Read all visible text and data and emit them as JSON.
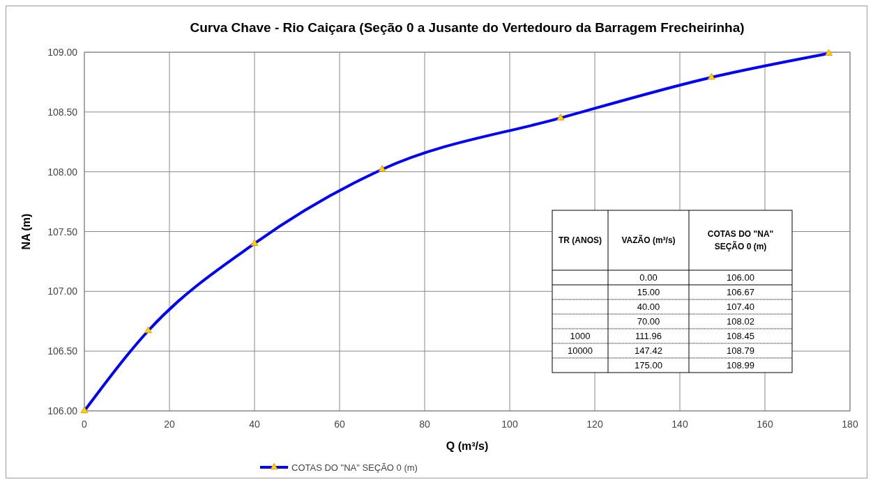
{
  "chart_data": {
    "type": "line",
    "title": "Curva Chave - Rio Caiçara (Seção 0 a Jusante do Vertedouro da Barragem Frecheirinha)",
    "xlabel": "Q (m³/s)",
    "ylabel": "NA (m)",
    "x": [
      0,
      15,
      40,
      70,
      111.96,
      147.42,
      175
    ],
    "series": [
      {
        "name": "COTAS DO \"NA\" SEÇÃO 0 (m)",
        "color": "#0000ff",
        "values": [
          106,
          106.67,
          107.4,
          108.02,
          108.45,
          108.79,
          108.99
        ]
      }
    ],
    "xlim": [
      0,
      180
    ],
    "xticks": [
      0,
      20,
      40,
      60,
      80,
      100,
      120,
      140,
      160,
      180
    ],
    "ylim": [
      106,
      109
    ],
    "yticks": [
      {
        "value": 106,
        "label": "106.00"
      },
      {
        "value": 106.5,
        "label": "106.50"
      },
      {
        "value": 107,
        "label": "107.00"
      },
      {
        "value": 107.5,
        "label": "107.50"
      },
      {
        "value": 108,
        "label": "108.00"
      },
      {
        "value": 108.5,
        "label": "108.50"
      },
      {
        "value": 109,
        "label": "109.00"
      }
    ],
    "grid": true,
    "legend": "bottom",
    "marker": "triangle",
    "line_style": "solid",
    "annotations": [
      "TR (ANOS)",
      "VAZÃO (m³/s)",
      "COTAS DO \"NA\" SEÇÃO 0 (m)",
      "0.00",
      "106.00",
      "15.00",
      "106.67",
      "40.00",
      "107.40",
      "70.00",
      "108.02",
      "1000",
      "111.96",
      "108.45",
      "10000",
      "147.42",
      "108.79",
      "175.00",
      "108.99"
    ]
  }
}
